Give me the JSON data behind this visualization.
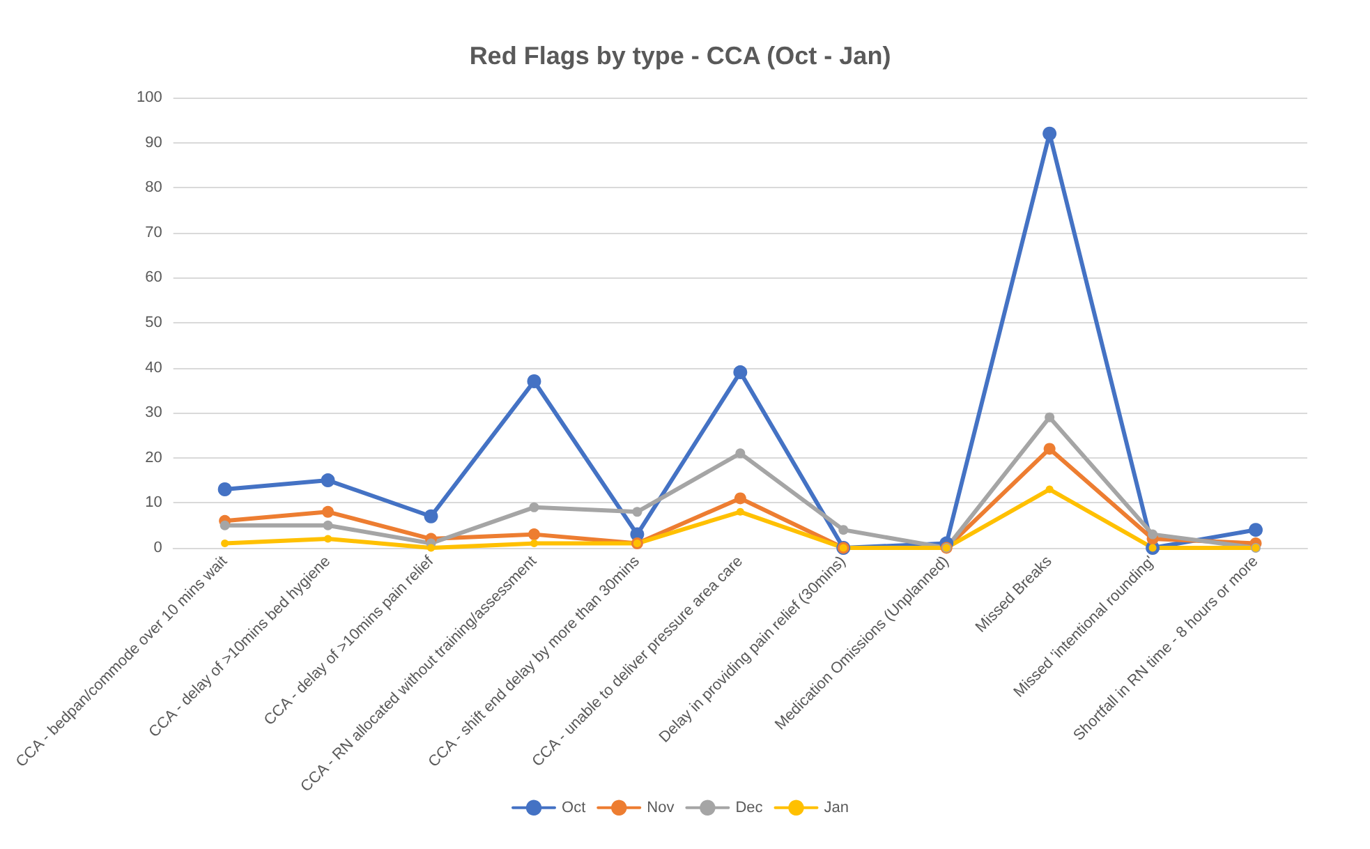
{
  "chart_data": {
    "type": "line",
    "title": "Red Flags by type - CCA (Oct - Jan)",
    "categories": [
      "CCA - bedpan/commode over 10 mins wait",
      "CCA - delay of >10mins bed hygiene",
      "CCA - delay of >10mins pain relief",
      "CCA - RN allocated without training/assessment",
      "CCA - shift end delay by more than 30mins",
      "CCA - unable to deliver pressure area care",
      "Delay in providing pain relief (30mins)",
      "Medication Omissions (Unplanned)",
      "Missed Breaks",
      "Missed 'intentional rounding'",
      "Shortfall in RN time - 8 hours or more"
    ],
    "series": [
      {
        "name": "Oct",
        "color": "#4472c4",
        "values": [
          13,
          15,
          7,
          37,
          3,
          39,
          0,
          1,
          92,
          0,
          4
        ]
      },
      {
        "name": "Nov",
        "color": "#ed7d31",
        "values": [
          6,
          8,
          2,
          3,
          1,
          11,
          0,
          0,
          22,
          2,
          1
        ]
      },
      {
        "name": "Dec",
        "color": "#a5a5a5",
        "values": [
          5,
          5,
          1,
          9,
          8,
          21,
          4,
          0,
          29,
          3,
          0
        ]
      },
      {
        "name": "Jan",
        "color": "#ffc000",
        "values": [
          1,
          2,
          0,
          1,
          1,
          8,
          0,
          0,
          13,
          0,
          0
        ]
      }
    ],
    "ylim": [
      0,
      100
    ],
    "yticks": [
      0,
      10,
      20,
      30,
      40,
      50,
      60,
      70,
      80,
      90,
      100
    ],
    "grid": "y",
    "legend": "bottom",
    "marker": "circle",
    "line_style": "solid"
  }
}
